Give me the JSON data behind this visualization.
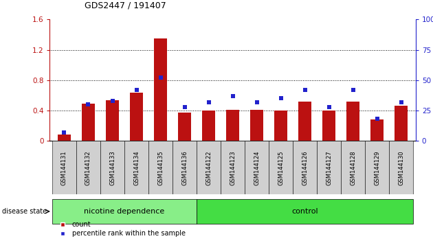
{
  "title": "GDS2447 / 191407",
  "samples": [
    "GSM144131",
    "GSM144132",
    "GSM144133",
    "GSM144134",
    "GSM144135",
    "GSM144136",
    "GSM144122",
    "GSM144123",
    "GSM144124",
    "GSM144125",
    "GSM144126",
    "GSM144127",
    "GSM144128",
    "GSM144129",
    "GSM144130"
  ],
  "counts": [
    0.08,
    0.49,
    0.54,
    0.64,
    1.35,
    0.37,
    0.4,
    0.41,
    0.41,
    0.4,
    0.52,
    0.4,
    0.52,
    0.28,
    0.46
  ],
  "percentiles": [
    7,
    30,
    33,
    42,
    52,
    28,
    32,
    37,
    32,
    35,
    42,
    28,
    42,
    18,
    32
  ],
  "groups": [
    "nicotine dependence",
    "nicotine dependence",
    "nicotine dependence",
    "nicotine dependence",
    "nicotine dependence",
    "nicotine dependence",
    "control",
    "control",
    "control",
    "control",
    "control",
    "control",
    "control",
    "control",
    "control"
  ],
  "bar_color": "#bb1111",
  "dot_color": "#2222cc",
  "group_colors": {
    "nicotine dependence": "#88ee88",
    "control": "#44dd44"
  },
  "ylim_left": [
    0,
    1.6
  ],
  "ylim_right": [
    0,
    100
  ],
  "yticks_left": [
    0,
    0.4,
    0.8,
    1.2,
    1.6
  ],
  "yticks_right": [
    0,
    25,
    50,
    75,
    100
  ],
  "background_color": "#ffffff"
}
